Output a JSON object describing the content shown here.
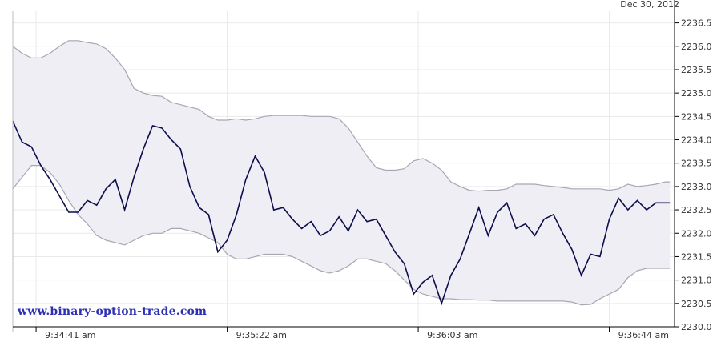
{
  "header": {
    "date": "Dec 30, 2012"
  },
  "watermark": {
    "text": "www.binary-option-trade.com"
  },
  "colors": {
    "price_line": "#0d0d4d",
    "band_fill": "#eeeef4",
    "band_edge": "#a7a7b2",
    "grid": "#e9e9e9",
    "axis": "#000000",
    "watermark": "#2b2fb3"
  },
  "chart_data": {
    "type": "line",
    "title": "",
    "xlabel": "",
    "ylabel": "",
    "ylim": [
      2230.0,
      2236.75
    ],
    "grid": true,
    "y_axis_position": "right",
    "yticks": [
      "2230.0",
      "2230.5",
      "2231.0",
      "2231.5",
      "2232.0",
      "2232.5",
      "2233.0",
      "2233.5",
      "2234.0",
      "2234.5",
      "2235.0",
      "2235.5",
      "2236.0",
      "2236.5"
    ],
    "xticks": [
      {
        "t": 5,
        "label": "9:34:41 am"
      },
      {
        "t": 46,
        "label": "9:35:22 am"
      },
      {
        "t": 87,
        "label": "9:36:03 am"
      },
      {
        "t": 128,
        "label": "9:36:44 am"
      }
    ],
    "x_range": [
      0,
      142
    ],
    "series": [
      {
        "role": "price",
        "points": [
          [
            0,
            2234.4
          ],
          [
            2,
            2233.95
          ],
          [
            4,
            2233.85
          ],
          [
            6,
            2233.45
          ],
          [
            8,
            2233.15
          ],
          [
            10,
            2232.8
          ],
          [
            12,
            2232.45
          ],
          [
            14,
            2232.45
          ],
          [
            16,
            2232.7
          ],
          [
            18,
            2232.6
          ],
          [
            20,
            2232.95
          ],
          [
            22,
            2233.15
          ],
          [
            24,
            2232.5
          ],
          [
            26,
            2233.2
          ],
          [
            28,
            2233.8
          ],
          [
            30,
            2234.3
          ],
          [
            32,
            2234.25
          ],
          [
            34,
            2234.0
          ],
          [
            36,
            2233.8
          ],
          [
            38,
            2233.0
          ],
          [
            40,
            2232.55
          ],
          [
            42,
            2232.4
          ],
          [
            44,
            2231.6
          ],
          [
            46,
            2231.85
          ],
          [
            48,
            2232.4
          ],
          [
            50,
            2233.15
          ],
          [
            52,
            2233.65
          ],
          [
            54,
            2233.3
          ],
          [
            56,
            2232.5
          ],
          [
            58,
            2232.55
          ],
          [
            60,
            2232.3
          ],
          [
            62,
            2232.1
          ],
          [
            64,
            2232.25
          ],
          [
            66,
            2231.95
          ],
          [
            68,
            2232.05
          ],
          [
            70,
            2232.35
          ],
          [
            72,
            2232.05
          ],
          [
            74,
            2232.5
          ],
          [
            76,
            2232.25
          ],
          [
            78,
            2232.3
          ],
          [
            80,
            2231.95
          ],
          [
            82,
            2231.6
          ],
          [
            84,
            2231.35
          ],
          [
            86,
            2230.7
          ],
          [
            88,
            2230.95
          ],
          [
            90,
            2231.1
          ],
          [
            92,
            2230.5
          ],
          [
            94,
            2231.1
          ],
          [
            96,
            2231.45
          ],
          [
            98,
            2232.0
          ],
          [
            100,
            2232.55
          ],
          [
            102,
            2231.95
          ],
          [
            104,
            2232.45
          ],
          [
            106,
            2232.65
          ],
          [
            108,
            2232.1
          ],
          [
            110,
            2232.2
          ],
          [
            112,
            2231.95
          ],
          [
            114,
            2232.3
          ],
          [
            116,
            2232.4
          ],
          [
            118,
            2232.0
          ],
          [
            120,
            2231.65
          ],
          [
            122,
            2231.1
          ],
          [
            124,
            2231.55
          ],
          [
            126,
            2231.5
          ],
          [
            128,
            2232.3
          ],
          [
            130,
            2232.75
          ],
          [
            132,
            2232.5
          ],
          [
            134,
            2232.7
          ],
          [
            136,
            2232.5
          ],
          [
            138,
            2232.65
          ],
          [
            141,
            2232.65
          ]
        ]
      },
      {
        "role": "band_upper",
        "points": [
          [
            0,
            2236.0
          ],
          [
            2,
            2235.85
          ],
          [
            4,
            2235.75
          ],
          [
            6,
            2235.75
          ],
          [
            8,
            2235.85
          ],
          [
            10,
            2236.0
          ],
          [
            12,
            2236.12
          ],
          [
            14,
            2236.12
          ],
          [
            16,
            2236.08
          ],
          [
            18,
            2236.05
          ],
          [
            20,
            2235.95
          ],
          [
            22,
            2235.75
          ],
          [
            24,
            2235.5
          ],
          [
            26,
            2235.1
          ],
          [
            28,
            2235.0
          ],
          [
            30,
            2234.95
          ],
          [
            32,
            2234.93
          ],
          [
            34,
            2234.8
          ],
          [
            36,
            2234.75
          ],
          [
            38,
            2234.7
          ],
          [
            40,
            2234.65
          ],
          [
            42,
            2234.5
          ],
          [
            44,
            2234.42
          ],
          [
            46,
            2234.42
          ],
          [
            48,
            2234.45
          ],
          [
            50,
            2234.42
          ],
          [
            52,
            2234.45
          ],
          [
            54,
            2234.5
          ],
          [
            56,
            2234.52
          ],
          [
            58,
            2234.52
          ],
          [
            60,
            2234.52
          ],
          [
            62,
            2234.52
          ],
          [
            64,
            2234.5
          ],
          [
            66,
            2234.5
          ],
          [
            68,
            2234.5
          ],
          [
            70,
            2234.45
          ],
          [
            72,
            2234.25
          ],
          [
            74,
            2233.95
          ],
          [
            76,
            2233.65
          ],
          [
            78,
            2233.4
          ],
          [
            80,
            2233.35
          ],
          [
            82,
            2233.35
          ],
          [
            84,
            2233.38
          ],
          [
            86,
            2233.55
          ],
          [
            88,
            2233.6
          ],
          [
            90,
            2233.5
          ],
          [
            92,
            2233.35
          ],
          [
            94,
            2233.1
          ],
          [
            96,
            2233.0
          ],
          [
            98,
            2232.92
          ],
          [
            100,
            2232.9
          ],
          [
            102,
            2232.92
          ],
          [
            104,
            2232.92
          ],
          [
            106,
            2232.95
          ],
          [
            108,
            2233.05
          ],
          [
            110,
            2233.05
          ],
          [
            112,
            2233.05
          ],
          [
            114,
            2233.02
          ],
          [
            116,
            2233.0
          ],
          [
            118,
            2232.98
          ],
          [
            120,
            2232.95
          ],
          [
            122,
            2232.95
          ],
          [
            124,
            2232.95
          ],
          [
            126,
            2232.95
          ],
          [
            128,
            2232.92
          ],
          [
            130,
            2232.95
          ],
          [
            132,
            2233.05
          ],
          [
            134,
            2233.0
          ],
          [
            136,
            2233.02
          ],
          [
            138,
            2233.05
          ],
          [
            140,
            2233.1
          ],
          [
            141,
            2233.1
          ]
        ]
      },
      {
        "role": "band_lower",
        "points": [
          [
            0,
            2232.95
          ],
          [
            2,
            2233.2
          ],
          [
            4,
            2233.45
          ],
          [
            6,
            2233.45
          ],
          [
            8,
            2233.3
          ],
          [
            10,
            2233.05
          ],
          [
            12,
            2232.7
          ],
          [
            14,
            2232.4
          ],
          [
            16,
            2232.2
          ],
          [
            18,
            2231.95
          ],
          [
            20,
            2231.85
          ],
          [
            22,
            2231.8
          ],
          [
            24,
            2231.75
          ],
          [
            26,
            2231.85
          ],
          [
            28,
            2231.95
          ],
          [
            30,
            2232.0
          ],
          [
            32,
            2232.0
          ],
          [
            34,
            2232.1
          ],
          [
            36,
            2232.1
          ],
          [
            38,
            2232.05
          ],
          [
            40,
            2232.0
          ],
          [
            42,
            2231.9
          ],
          [
            44,
            2231.8
          ],
          [
            46,
            2231.55
          ],
          [
            48,
            2231.45
          ],
          [
            50,
            2231.45
          ],
          [
            52,
            2231.5
          ],
          [
            54,
            2231.55
          ],
          [
            56,
            2231.55
          ],
          [
            58,
            2231.55
          ],
          [
            60,
            2231.5
          ],
          [
            62,
            2231.4
          ],
          [
            64,
            2231.3
          ],
          [
            66,
            2231.2
          ],
          [
            68,
            2231.15
          ],
          [
            70,
            2231.2
          ],
          [
            72,
            2231.3
          ],
          [
            74,
            2231.45
          ],
          [
            76,
            2231.45
          ],
          [
            78,
            2231.4
          ],
          [
            80,
            2231.35
          ],
          [
            82,
            2231.2
          ],
          [
            84,
            2231.0
          ],
          [
            86,
            2230.8
          ],
          [
            88,
            2230.7
          ],
          [
            90,
            2230.65
          ],
          [
            92,
            2230.6
          ],
          [
            94,
            2230.6
          ],
          [
            96,
            2230.58
          ],
          [
            98,
            2230.58
          ],
          [
            100,
            2230.57
          ],
          [
            102,
            2230.57
          ],
          [
            104,
            2230.55
          ],
          [
            106,
            2230.55
          ],
          [
            108,
            2230.55
          ],
          [
            110,
            2230.55
          ],
          [
            112,
            2230.55
          ],
          [
            114,
            2230.55
          ],
          [
            116,
            2230.55
          ],
          [
            118,
            2230.55
          ],
          [
            120,
            2230.53
          ],
          [
            122,
            2230.47
          ],
          [
            124,
            2230.48
          ],
          [
            126,
            2230.6
          ],
          [
            128,
            2230.7
          ],
          [
            130,
            2230.8
          ],
          [
            132,
            2231.05
          ],
          [
            134,
            2231.2
          ],
          [
            136,
            2231.25
          ],
          [
            138,
            2231.25
          ],
          [
            141,
            2231.25
          ]
        ]
      }
    ]
  }
}
